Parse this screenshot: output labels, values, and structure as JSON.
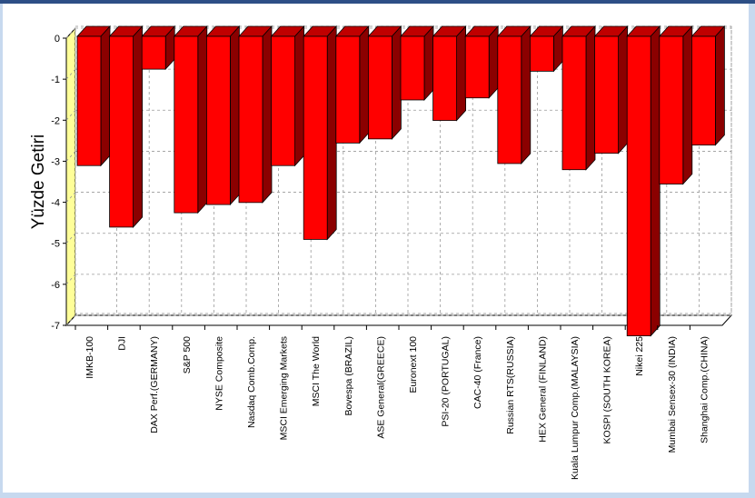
{
  "chart_data": {
    "type": "bar",
    "ylabel": "Yüzde Getiri",
    "ylim": [
      -7,
      0
    ],
    "yticks": [
      0,
      -1,
      -2,
      -3,
      -4,
      -5,
      -6,
      -7
    ],
    "grid": true,
    "categories": [
      "IMKB-100",
      "DJI",
      "DAX Perf.(GERMANY)",
      "S&P 500",
      "NYSE Composite",
      "Nasdaq Comb.Comp.",
      "MSCI Emerging Markets",
      "MSCI The World",
      "Bovespa (BRAZIL)",
      "ASE General(GREECE)",
      "Euronext 100",
      "PSI-20 (PORTUGAL)",
      "CAC-40 (France)",
      "Russian RTS(RUSSIA)",
      "HEX General (FINLAND)",
      "Kuala Lumpur Comp.(MALAYSIA)",
      "KOSPI (SOUTH KOREA)",
      "Nikei 225",
      "Mumbai Sensex-30 (INDIA)",
      "Shanghai Comp.(CHINA)"
    ],
    "values": [
      -3.15,
      -4.65,
      -0.8,
      -4.3,
      -4.1,
      -4.05,
      -3.15,
      -4.95,
      -2.6,
      -2.5,
      -1.55,
      -2.05,
      -1.5,
      -3.1,
      -0.85,
      -3.25,
      -2.85,
      -7.3,
      -3.6,
      -2.65
    ],
    "colors": {
      "bar_front": "#ff0000",
      "bar_side": "#8b0000",
      "bar_top": "#c00000",
      "axis_wall": "#ffff99"
    }
  }
}
